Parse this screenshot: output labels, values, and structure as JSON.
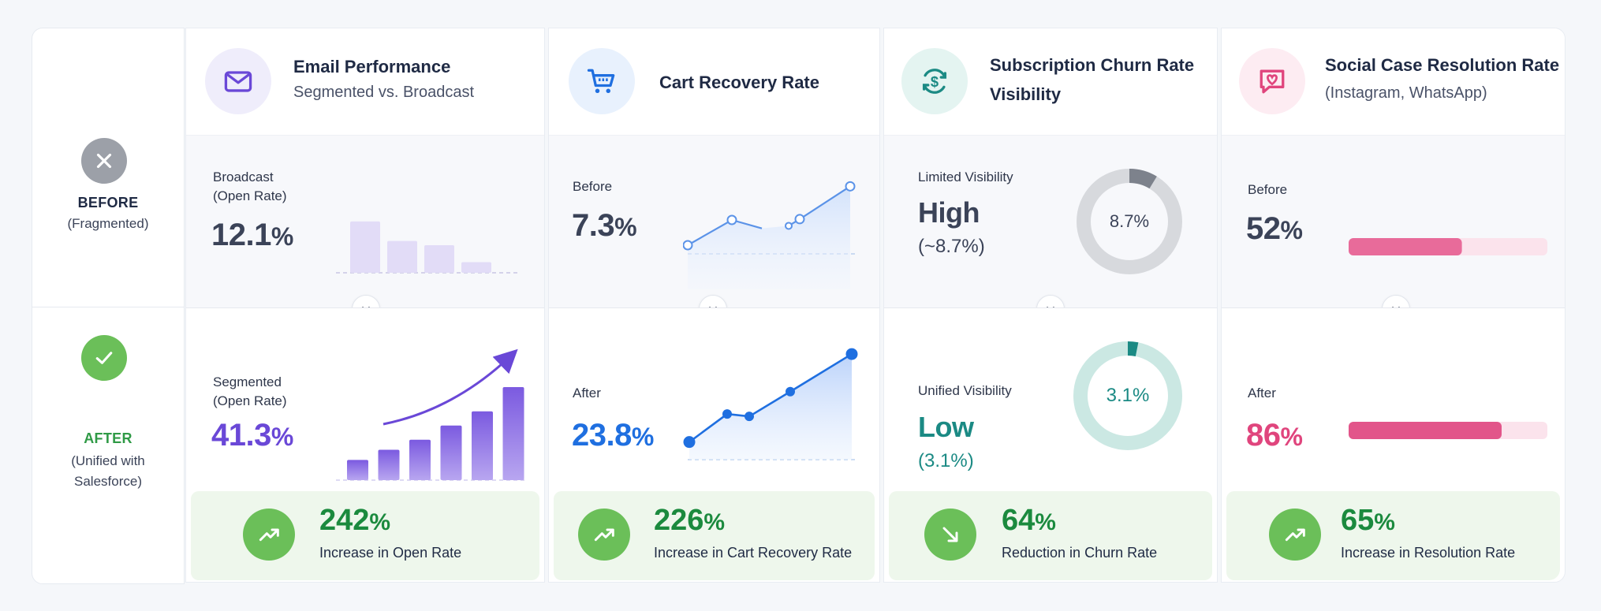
{
  "rows": {
    "before": {
      "title": "BEFORE",
      "subtitle": "(Fragmented)"
    },
    "after": {
      "title": "AFTER",
      "subtitle_lines": [
        "(Unified with",
        "Salesforce)"
      ]
    }
  },
  "colors": {
    "purple": "#6a48d7",
    "blue": "#1f6fe0",
    "teal": "#1b8a84",
    "pink": "#e0457d",
    "green": "#6bbf59",
    "gray": "#9aa0aa"
  },
  "columns": [
    {
      "title": "Email Performance",
      "subtitle": "Segmented vs. Broadcast",
      "icon": "envelope-icon",
      "before": {
        "label_lines": [
          "Broadcast",
          "(Open Rate)"
        ],
        "value": "12.1",
        "unit": "%"
      },
      "after": {
        "label_lines": [
          "Segmented",
          "(Open Rate)"
        ],
        "value": "41.3",
        "unit": "%"
      },
      "footer": {
        "value": "242",
        "unit": "%",
        "label": "Increase in Open Rate",
        "trend": "up"
      }
    },
    {
      "title": "Cart Recovery Rate",
      "subtitle": "",
      "icon": "cart-icon",
      "before": {
        "label": "Before",
        "value": "7.3",
        "unit": "%"
      },
      "after": {
        "label": "After",
        "value": "23.8",
        "unit": "%"
      },
      "footer": {
        "value": "226",
        "unit": "%",
        "label": "Increase in Cart Recovery Rate",
        "trend": "up"
      }
    },
    {
      "title_lines": [
        "Subscription Churn Rate",
        "Visibility"
      ],
      "icon": "subscription-dollar-icon",
      "before": {
        "label": "Limited Visibility",
        "value": "High",
        "sub": "(~8.7%)",
        "donut_label": "8.7%"
      },
      "after": {
        "label": "Unified Visibility",
        "value": "Low",
        "sub": "(3.1%)",
        "donut_label": "3.1%"
      },
      "footer": {
        "value": "64",
        "unit": "%",
        "label": "Reduction in Churn Rate",
        "trend": "down"
      }
    },
    {
      "title": "Social Case Resolution Rate",
      "subtitle": "(Instagram, WhatsApp)",
      "icon": "chat-heart-icon",
      "before": {
        "label": "Before",
        "value": "52",
        "unit": "%"
      },
      "after": {
        "label": "After",
        "value": "86",
        "unit": "%"
      },
      "footer": {
        "value": "65",
        "unit": "%",
        "label": "Increase in Resolution Rate",
        "trend": "up"
      }
    }
  ],
  "chart_data": [
    {
      "type": "bar",
      "title": "Email Performance – Broadcast (Open Rate)",
      "values": [
        12.1,
        7.5,
        6.5,
        2.5
      ],
      "highlight": "before"
    },
    {
      "type": "bar",
      "title": "Email Performance – Segmented (Open Rate)",
      "values": [
        5,
        7.5,
        10,
        13.5,
        17,
        23
      ],
      "highlight": "after"
    },
    {
      "type": "line",
      "title": "Cart Recovery – Before",
      "values": [
        1.5,
        4.5,
        3.5,
        3.8,
        4.6,
        8.5
      ]
    },
    {
      "type": "line",
      "title": "Cart Recovery – After",
      "values": [
        2.5,
        6.0,
        5.7,
        8.8,
        13.5
      ]
    },
    {
      "type": "pie",
      "title": "Churn – Limited Visibility",
      "values": [
        8.7,
        91.3
      ]
    },
    {
      "type": "pie",
      "title": "Churn – Unified Visibility",
      "values": [
        3.1,
        96.9
      ]
    },
    {
      "type": "bar",
      "title": "Social Case Resolution – Before",
      "values": [
        52
      ],
      "ylim": [
        0,
        86
      ]
    },
    {
      "type": "bar",
      "title": "Social Case Resolution – After",
      "values": [
        86
      ],
      "ylim": [
        0,
        100
      ]
    }
  ]
}
